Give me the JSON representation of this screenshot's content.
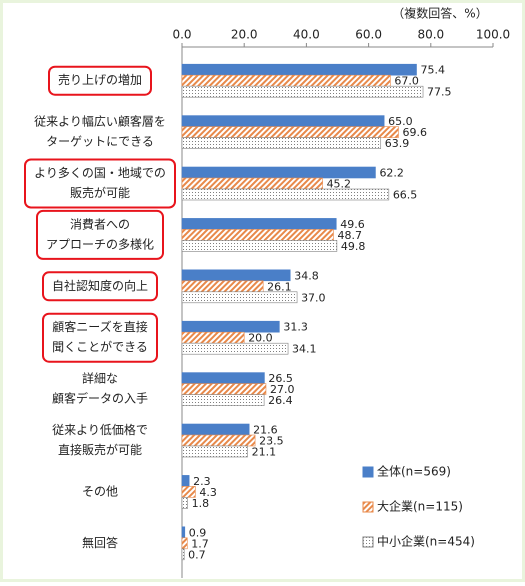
{
  "chart_data": {
    "type": "bar",
    "orientation": "horizontal",
    "subtitle": "（複数回答、%）",
    "categories": [
      [
        "売り上げの増加"
      ],
      [
        "従来より幅広い顧客層を",
        "ターゲットにできる"
      ],
      [
        "より多くの国・地域での",
        "販売が可能"
      ],
      [
        "消費者への",
        "アプローチの多様化"
      ],
      [
        "自社認知度の向上"
      ],
      [
        "顧客ニーズを直接",
        "聞くことができる"
      ],
      [
        "詳細な",
        "顧客データの入手"
      ],
      [
        "従来より低価格で",
        "直接販売が可能"
      ],
      [
        "その他"
      ],
      [
        "無回答"
      ]
    ],
    "highlight": [
      true,
      false,
      true,
      true,
      true,
      true,
      false,
      false,
      false,
      false
    ],
    "highlight_color": "#e8141c",
    "series": [
      {
        "name": "全体(n=569)",
        "color": "#4a7fc8",
        "pattern": "solid",
        "values": [
          75.4,
          65.0,
          62.2,
          49.6,
          34.8,
          31.3,
          26.5,
          21.6,
          2.3,
          0.9
        ],
        "value_labels": [
          "75.4",
          "65.0",
          "62.2",
          "49.6",
          "34.8",
          "31.3",
          "26.5",
          "21.6",
          "2.3",
          "0.9"
        ]
      },
      {
        "name": "大企業(n=115)",
        "color": "#e8894a",
        "pattern": "hatch",
        "values": [
          67.0,
          69.6,
          45.2,
          48.7,
          26.1,
          20.0,
          27.0,
          23.5,
          4.3,
          1.7
        ],
        "value_labels": [
          "67.0",
          "69.6",
          "45.2",
          "48.7",
          "26.1",
          "20.0",
          "27.0",
          "23.5",
          "4.3",
          "1.7"
        ]
      },
      {
        "name": "中小企業(n=454)",
        "color": "#7f7f7f",
        "pattern": "dots",
        "values": [
          77.5,
          63.9,
          66.5,
          49.8,
          37.0,
          34.1,
          26.4,
          21.1,
          1.8,
          0.7
        ],
        "value_labels": [
          "77.5",
          "63.9",
          "66.5",
          "49.8",
          "37.0",
          "34.1",
          "26.4",
          "21.1",
          "1.8",
          "0.7"
        ]
      }
    ],
    "xlim": [
      0,
      100
    ],
    "xticks": [
      {
        "value": 0,
        "label": "0.0"
      },
      {
        "value": 20,
        "label": "20.0"
      },
      {
        "value": 40,
        "label": "40.0"
      },
      {
        "value": 60,
        "label": "60.0"
      },
      {
        "value": 80,
        "label": "80.0"
      },
      {
        "value": 100,
        "label": "100.0"
      }
    ],
    "grid": false,
    "legend": "lower right"
  }
}
